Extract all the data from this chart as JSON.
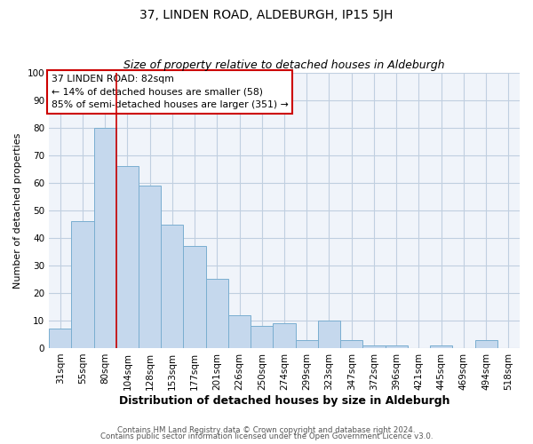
{
  "title": "37, LINDEN ROAD, ALDEBURGH, IP15 5JH",
  "subtitle": "Size of property relative to detached houses in Aldeburgh",
  "xlabel": "Distribution of detached houses by size in Aldeburgh",
  "ylabel": "Number of detached properties",
  "bar_labels": [
    "31sqm",
    "55sqm",
    "80sqm",
    "104sqm",
    "128sqm",
    "153sqm",
    "177sqm",
    "201sqm",
    "226sqm",
    "250sqm",
    "274sqm",
    "299sqm",
    "323sqm",
    "347sqm",
    "372sqm",
    "396sqm",
    "421sqm",
    "445sqm",
    "469sqm",
    "494sqm",
    "518sqm"
  ],
  "bar_values": [
    7,
    46,
    80,
    66,
    59,
    45,
    37,
    25,
    12,
    8,
    9,
    3,
    10,
    3,
    1,
    1,
    0,
    1,
    0,
    3,
    0
  ],
  "bar_color": "#c5d8ed",
  "bar_edge_color": "#7aaed0",
  "vline_x_index": 2,
  "vline_color": "#cc0000",
  "ylim": [
    0,
    100
  ],
  "annotation_title": "37 LINDEN ROAD: 82sqm",
  "annotation_line1": "← 14% of detached houses are smaller (58)",
  "annotation_line2": "85% of semi-detached houses are larger (351) →",
  "annotation_box_color": "#ffffff",
  "annotation_box_edge": "#cc0000",
  "footer1": "Contains HM Land Registry data © Crown copyright and database right 2024.",
  "footer2": "Contains public sector information licensed under the Open Government Licence v3.0.",
  "background_color": "#ffffff",
  "plot_bg_color": "#f0f4fa",
  "grid_color": "#c0cfe0",
  "title_fontsize": 10,
  "subtitle_fontsize": 9,
  "tick_fontsize": 7.5,
  "ylabel_fontsize": 8,
  "xlabel_fontsize": 9
}
